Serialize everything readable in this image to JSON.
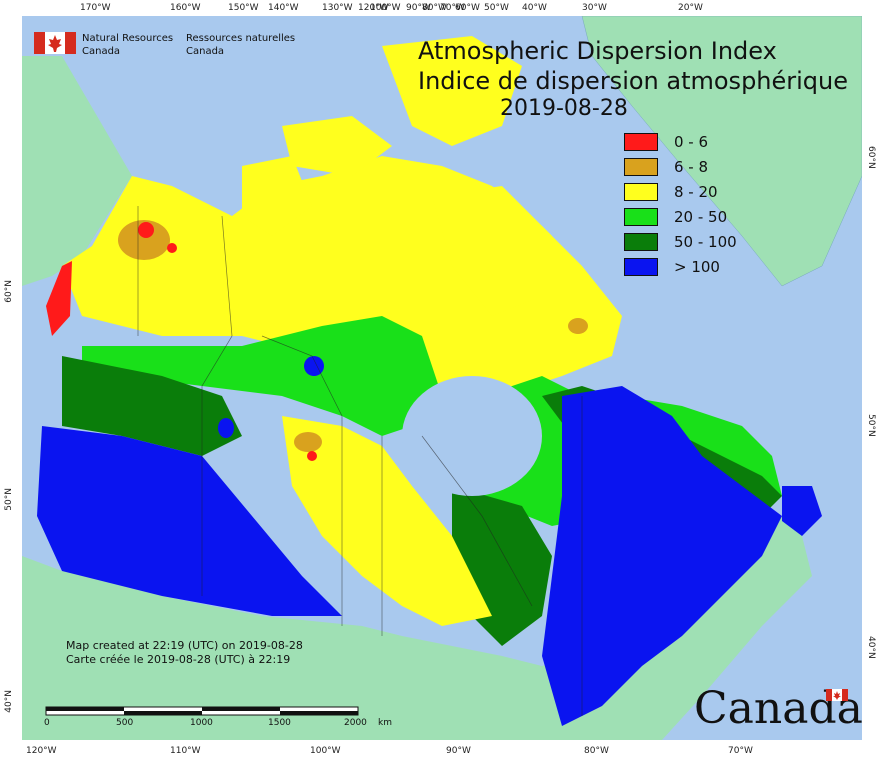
{
  "header": {
    "agency_en_line1": "Natural Resources",
    "agency_en_line2": "Canada",
    "agency_fr_line1": "Ressources naturelles",
    "agency_fr_line2": "Canada"
  },
  "title": {
    "line_en": "Atmospheric Dispersion Index",
    "line_fr": "Indice de dispersion atmosphérique",
    "date": "2019-08-28"
  },
  "legend": [
    {
      "label": "0 - 6",
      "color": "#ff1a1a"
    },
    {
      "label": "6 - 8",
      "color": "#d9a21e"
    },
    {
      "label": "8 - 20",
      "color": "#ffff1e"
    },
    {
      "label": "20 - 50",
      "color": "#19e019"
    },
    {
      "label": "50 - 100",
      "color": "#0a7d0a"
    },
    {
      "label": "> 100",
      "color": "#0a14f0"
    }
  ],
  "graticule": {
    "top": [
      "170°W",
      "160°W",
      "150°W",
      "140°W",
      "130°W",
      "120°W",
      "100°W",
      "90°W",
      "80°W",
      "70°W",
      "60°W",
      "50°W",
      "40°W",
      "30°W",
      "20°W"
    ],
    "bottom": [
      "120°W",
      "110°W",
      "100°W",
      "90°W",
      "80°W",
      "70°W"
    ],
    "left": [
      "60°N",
      "50°N",
      "40°N"
    ],
    "right": [
      "60°N",
      "50°N",
      "40°N"
    ]
  },
  "credit": {
    "line_en": "Map created at 22:19 (UTC) on 2019-08-28",
    "line_fr": "Carte créée le 2019-08-28 (UTC) à 22:19"
  },
  "scale": {
    "labels": [
      "0",
      "500",
      "1000",
      "1500",
      "2000"
    ],
    "unit": "km"
  },
  "wordmark": "Canada",
  "colors": {
    "ocean": "#a9c9ee",
    "land_outside": "#9fe0b4",
    "greenland": "#9fe0b4"
  }
}
